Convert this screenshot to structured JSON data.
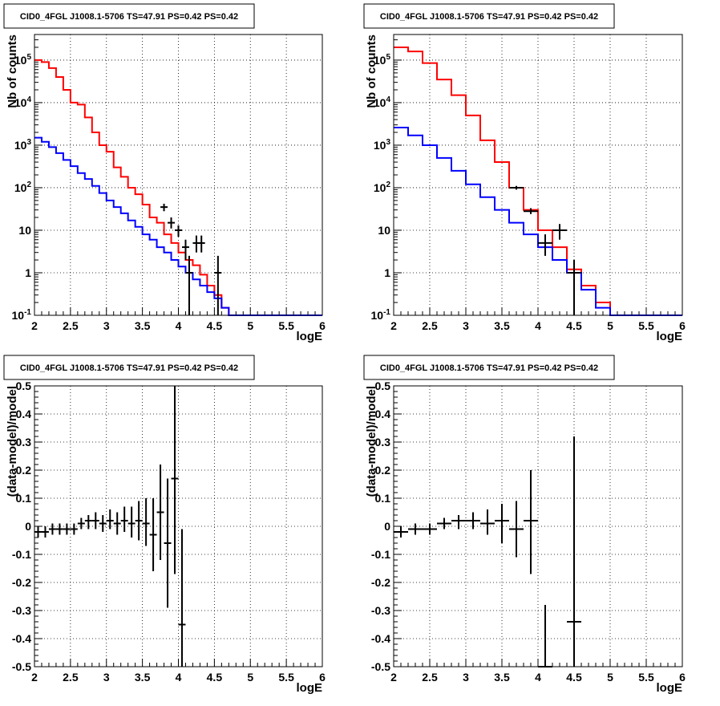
{
  "panels": [
    {
      "title": "CID0_4FGL J1008.1-5706 TS=47.91 PS=0.42 PS=0.42",
      "chart_data": {
        "type": "line",
        "xlabel": "logE",
        "ylabel": "Nb of counts",
        "xlim": [
          2,
          6
        ],
        "ylim": [
          0.1,
          400000
        ],
        "log_y": true,
        "grid": true,
        "x_ticks": [
          2,
          2.5,
          3,
          3.5,
          4,
          4.5,
          5,
          5.5,
          6
        ],
        "x_tick_labels": [
          "2",
          "2.5",
          "3",
          "3.5",
          "4",
          "4.5",
          "5",
          "5.5",
          "6"
        ],
        "y_ticks": [
          0.1,
          1,
          10,
          100,
          1000,
          10000,
          100000
        ],
        "y_tick_labels": [
          "10^-1",
          "1",
          "10",
          "10^2",
          "10^3",
          "10^4",
          "10^5"
        ],
        "bin_edges": [
          2.0,
          2.1,
          2.2,
          2.3,
          2.4,
          2.5,
          2.6,
          2.7,
          2.8,
          2.9,
          3.0,
          3.1,
          3.2,
          3.3,
          3.4,
          3.5,
          3.6,
          3.7,
          3.8,
          3.9,
          4.0,
          4.1,
          4.2,
          4.3,
          4.4,
          4.5,
          4.6,
          4.7,
          4.8,
          4.9,
          5.0,
          5.1,
          5.2,
          5.3,
          5.4,
          5.5,
          5.6,
          5.7,
          5.8,
          5.9,
          6.0
        ],
        "series": [
          {
            "color": "#ff0000",
            "kind": "step",
            "values": [
              100000,
              90000,
              65000,
              40000,
              20000,
              10000,
              9000,
              4500,
              2000,
              1000,
              700,
              300,
              180,
              100,
              70,
              40,
              20,
              15,
              8,
              5,
              3,
              2,
              1.5,
              0.9,
              0.5,
              0.3,
              0.15,
              0.1,
              0.1,
              0.1,
              0.1,
              0.1,
              0.1,
              0.1,
              0.1,
              0.1,
              0.1,
              0.1,
              0.1,
              0.1
            ]
          },
          {
            "color": "#0000ff",
            "kind": "step",
            "values": [
              1500,
              1200,
              900,
              650,
              450,
              320,
              220,
              160,
              110,
              75,
              50,
              35,
              25,
              17,
              12,
              8,
              6,
              4,
              3,
              2,
              1.4,
              1.0,
              0.7,
              0.5,
              0.35,
              0.25,
              0.15,
              0.1,
              0.1,
              0.1,
              0.1,
              0.1,
              0.1,
              0.1,
              0.1,
              0.1,
              0.1,
              0.1,
              0.1,
              0.1
            ]
          },
          {
            "color": "#000000",
            "kind": "errorbars",
            "points": [
              {
                "x": 3.8,
                "y": 35,
                "xerr": 0.05,
                "ylo": 28,
                "yhi": 42
              },
              {
                "x": 3.9,
                "y": 15,
                "xerr": 0.05,
                "ylo": 11,
                "yhi": 20
              },
              {
                "x": 4.0,
                "y": 10,
                "xerr": 0.05,
                "ylo": 7,
                "yhi": 13
              },
              {
                "x": 4.1,
                "y": 4,
                "xerr": 0.05,
                "ylo": 2,
                "yhi": 6
              },
              {
                "x": 4.15,
                "y": 1,
                "xerr": 0.05,
                "ylo": 0.1,
                "yhi": 2.5
              },
              {
                "x": 4.25,
                "y": 5,
                "xerr": 0.05,
                "ylo": 3,
                "yhi": 7.5
              },
              {
                "x": 4.32,
                "y": 5,
                "xerr": 0.05,
                "ylo": 3,
                "yhi": 7.5
              },
              {
                "x": 4.55,
                "y": 1,
                "xerr": 0.05,
                "ylo": 0.1,
                "yhi": 2.5
              }
            ]
          }
        ]
      }
    },
    {
      "title": "CID0_4FGL J1008.1-5706 TS=47.91 PS=0.42 PS=0.42",
      "chart_data": {
        "type": "line",
        "xlabel": "logE",
        "ylabel": "Nb of counts",
        "xlim": [
          2,
          6
        ],
        "ylim": [
          0.1,
          400000
        ],
        "log_y": true,
        "grid": true,
        "x_ticks": [
          2,
          2.5,
          3,
          3.5,
          4,
          4.5,
          5,
          5.5,
          6
        ],
        "x_tick_labels": [
          "2",
          "2.5",
          "3",
          "3.5",
          "4",
          "4.5",
          "5",
          "5.5",
          "6"
        ],
        "y_ticks": [
          0.1,
          1,
          10,
          100,
          1000,
          10000,
          100000
        ],
        "y_tick_labels": [
          "10^-1",
          "1",
          "10",
          "10^2",
          "10^3",
          "10^4",
          "10^5"
        ],
        "bin_edges": [
          2.0,
          2.2,
          2.4,
          2.6,
          2.8,
          3.0,
          3.2,
          3.4,
          3.6,
          3.8,
          4.0,
          4.2,
          4.4,
          4.6,
          4.8,
          5.0,
          5.2,
          5.4,
          5.6,
          5.8,
          6.0
        ],
        "series": [
          {
            "color": "#ff0000",
            "kind": "step",
            "values": [
              200000,
              160000,
              85000,
              35000,
              15000,
              5000,
              1300,
              400,
              100,
              30,
              10,
              4,
              1.2,
              0.5,
              0.2,
              0.1,
              0.1,
              0.1,
              0.1,
              0.1
            ]
          },
          {
            "color": "#0000ff",
            "kind": "step",
            "values": [
              2600,
              1700,
              1000,
              500,
              250,
              120,
              60,
              30,
              15,
              8,
              4,
              2,
              1,
              0.4,
              0.15,
              0.1,
              0.1,
              0.1,
              0.1,
              0.1
            ]
          },
          {
            "color": "#000000",
            "kind": "errorbars",
            "points": [
              {
                "x": 3.7,
                "y": 100,
                "xerr": 0.1,
                "ylo": 90,
                "yhi": 110
              },
              {
                "x": 3.9,
                "y": 28,
                "xerr": 0.1,
                "ylo": 24,
                "yhi": 33
              },
              {
                "x": 4.1,
                "y": 5,
                "xerr": 0.1,
                "ylo": 2.5,
                "yhi": 8
              },
              {
                "x": 4.3,
                "y": 10,
                "xerr": 0.1,
                "ylo": 6,
                "yhi": 14
              },
              {
                "x": 4.5,
                "y": 1,
                "xerr": 0.1,
                "ylo": 0.1,
                "yhi": 2
              }
            ]
          }
        ]
      }
    },
    {
      "title": "CID0_4FGL J1008.1-5706 TS=47.91 PS=0.42 PS=0.42",
      "chart_data": {
        "type": "scatter",
        "xlabel": "logE",
        "ylabel": "(data-model)/model",
        "xlim": [
          2,
          6
        ],
        "ylim": [
          -0.5,
          0.5
        ],
        "log_y": false,
        "grid": true,
        "x_ticks": [
          2,
          2.5,
          3,
          3.5,
          4,
          4.5,
          5,
          5.5,
          6
        ],
        "x_tick_labels": [
          "2",
          "2.5",
          "3",
          "3.5",
          "4",
          "4.5",
          "5",
          "5.5",
          "6"
        ],
        "y_ticks": [
          -0.5,
          -0.4,
          -0.3,
          -0.2,
          -0.1,
          0,
          0.1,
          0.2,
          0.3,
          0.4,
          0.5
        ],
        "y_tick_labels": [
          "-0.5",
          "-0.4",
          "-0.3",
          "-0.2",
          "-0.1",
          "0",
          "0.1",
          "0.2",
          "0.3",
          "0.4",
          "0.5"
        ],
        "series": [
          {
            "color": "#000000",
            "kind": "errorbars",
            "points": [
              {
                "x": 2.05,
                "y": -0.02,
                "xerr": 0.05,
                "ylo": -0.04,
                "yhi": 0.0
              },
              {
                "x": 2.15,
                "y": -0.02,
                "xerr": 0.05,
                "ylo": -0.04,
                "yhi": 0.0
              },
              {
                "x": 2.25,
                "y": -0.01,
                "xerr": 0.05,
                "ylo": -0.03,
                "yhi": 0.01
              },
              {
                "x": 2.35,
                "y": -0.01,
                "xerr": 0.05,
                "ylo": -0.03,
                "yhi": 0.01
              },
              {
                "x": 2.45,
                "y": -0.01,
                "xerr": 0.05,
                "ylo": -0.03,
                "yhi": 0.01
              },
              {
                "x": 2.55,
                "y": -0.01,
                "xerr": 0.05,
                "ylo": -0.03,
                "yhi": 0.01
              },
              {
                "x": 2.65,
                "y": 0.01,
                "xerr": 0.05,
                "ylo": -0.01,
                "yhi": 0.03
              },
              {
                "x": 2.75,
                "y": 0.02,
                "xerr": 0.05,
                "ylo": -0.01,
                "yhi": 0.04
              },
              {
                "x": 2.85,
                "y": 0.02,
                "xerr": 0.05,
                "ylo": -0.01,
                "yhi": 0.05
              },
              {
                "x": 2.95,
                "y": 0.01,
                "xerr": 0.05,
                "ylo": -0.02,
                "yhi": 0.04
              },
              {
                "x": 3.05,
                "y": 0.02,
                "xerr": 0.05,
                "ylo": -0.01,
                "yhi": 0.06
              },
              {
                "x": 3.15,
                "y": 0.01,
                "xerr": 0.05,
                "ylo": -0.03,
                "yhi": 0.05
              },
              {
                "x": 3.25,
                "y": 0.02,
                "xerr": 0.05,
                "ylo": -0.02,
                "yhi": 0.07
              },
              {
                "x": 3.35,
                "y": 0.01,
                "xerr": 0.05,
                "ylo": -0.04,
                "yhi": 0.07
              },
              {
                "x": 3.45,
                "y": 0.02,
                "xerr": 0.05,
                "ylo": -0.05,
                "yhi": 0.09
              },
              {
                "x": 3.55,
                "y": 0.01,
                "xerr": 0.05,
                "ylo": -0.07,
                "yhi": 0.1
              },
              {
                "x": 3.65,
                "y": -0.03,
                "xerr": 0.05,
                "ylo": -0.16,
                "yhi": 0.1
              },
              {
                "x": 3.75,
                "y": 0.05,
                "xerr": 0.05,
                "ylo": -0.12,
                "yhi": 0.22
              },
              {
                "x": 3.85,
                "y": -0.06,
                "xerr": 0.05,
                "ylo": -0.29,
                "yhi": 0.17
              },
              {
                "x": 3.95,
                "y": 0.17,
                "xerr": 0.05,
                "ylo": -0.17,
                "yhi": 0.5
              },
              {
                "x": 4.05,
                "y": -0.35,
                "xerr": 0.05,
                "ylo": -0.5,
                "yhi": -0.01
              }
            ]
          }
        ]
      }
    },
    {
      "title": "CID0_4FGL J1008.1-5706 TS=47.91 PS=0.42 PS=0.42",
      "chart_data": {
        "type": "scatter",
        "xlabel": "logE",
        "ylabel": "(data-model)/model",
        "xlim": [
          2,
          6
        ],
        "ylim": [
          -0.5,
          0.5
        ],
        "log_y": false,
        "grid": true,
        "x_ticks": [
          2,
          2.5,
          3,
          3.5,
          4,
          4.5,
          5,
          5.5,
          6
        ],
        "x_tick_labels": [
          "2",
          "2.5",
          "3",
          "3.5",
          "4",
          "4.5",
          "5",
          "5.5",
          "6"
        ],
        "y_ticks": [
          -0.5,
          -0.4,
          -0.3,
          -0.2,
          -0.1,
          0,
          0.1,
          0.2,
          0.3,
          0.4,
          0.5
        ],
        "y_tick_labels": [
          "-0.5",
          "-0.4",
          "-0.3",
          "-0.2",
          "-0.1",
          "0",
          "0.1",
          "0.2",
          "0.3",
          "0.4",
          "0.5"
        ],
        "series": [
          {
            "color": "#000000",
            "kind": "errorbars",
            "points": [
              {
                "x": 2.1,
                "y": -0.02,
                "xerr": 0.1,
                "ylo": -0.04,
                "yhi": 0.0
              },
              {
                "x": 2.3,
                "y": -0.01,
                "xerr": 0.1,
                "ylo": -0.03,
                "yhi": 0.01
              },
              {
                "x": 2.5,
                "y": -0.01,
                "xerr": 0.1,
                "ylo": -0.03,
                "yhi": 0.01
              },
              {
                "x": 2.7,
                "y": 0.01,
                "xerr": 0.1,
                "ylo": -0.01,
                "yhi": 0.03
              },
              {
                "x": 2.9,
                "y": 0.02,
                "xerr": 0.1,
                "ylo": -0.01,
                "yhi": 0.04
              },
              {
                "x": 3.1,
                "y": 0.02,
                "xerr": 0.1,
                "ylo": -0.01,
                "yhi": 0.05
              },
              {
                "x": 3.3,
                "y": 0.01,
                "xerr": 0.1,
                "ylo": -0.03,
                "yhi": 0.06
              },
              {
                "x": 3.5,
                "y": 0.02,
                "xerr": 0.1,
                "ylo": -0.06,
                "yhi": 0.08
              },
              {
                "x": 3.7,
                "y": -0.01,
                "xerr": 0.1,
                "ylo": -0.11,
                "yhi": 0.09
              },
              {
                "x": 3.9,
                "y": 0.02,
                "xerr": 0.1,
                "ylo": -0.17,
                "yhi": 0.2
              },
              {
                "x": 4.1,
                "y": -0.5,
                "xerr": 0.1,
                "ylo": -0.5,
                "yhi": -0.28
              },
              {
                "x": 4.5,
                "y": -0.34,
                "xerr": 0.1,
                "ylo": -0.5,
                "yhi": 0.32
              }
            ]
          }
        ]
      }
    }
  ]
}
